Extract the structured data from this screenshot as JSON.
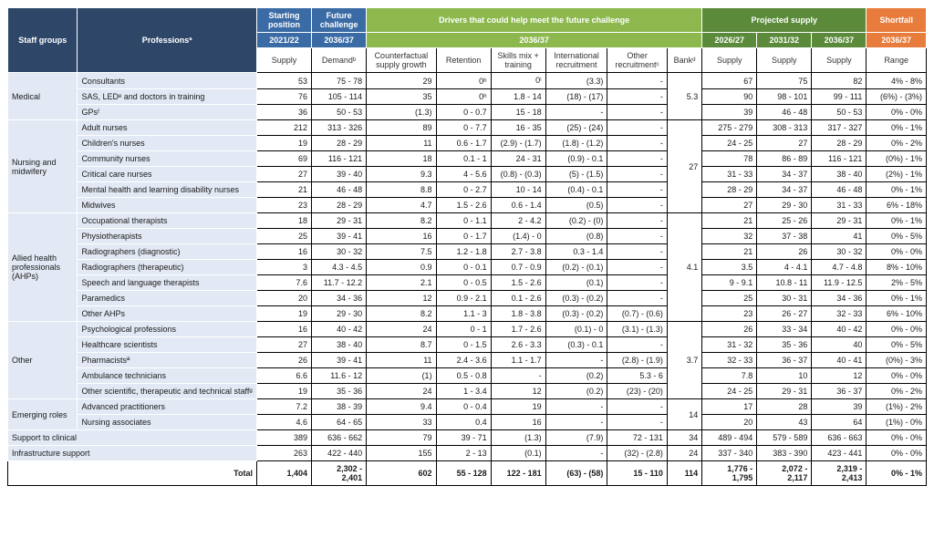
{
  "headers": {
    "staffGroups": "Staff groups",
    "professions": "Professionsª",
    "startingPosition": "Starting position",
    "futureChallenge": "Future challenge",
    "driversTitle": "Drivers that could help meet the future challenge",
    "projectedSupply": "Projected supply",
    "shortfall": "Shortfall",
    "y2021": "2021/22",
    "y2036a": "2036/37",
    "y2026": "2026/27",
    "y2031": "2031/32",
    "y2036b": "2036/37",
    "supply": "Supply",
    "demand": "Demandᵇ",
    "counterfactual": "Counterfactual supply growth",
    "retention": "Retention",
    "skills": "Skills mix + training",
    "international": "International recruitment",
    "other": "Other recruitmentᶜ",
    "bank": "Bankᵈ",
    "range": "Range"
  },
  "colors": {
    "navy": "#2e4769",
    "blue": "#3b6ba5",
    "lgreen": "#8db84e",
    "dgreen": "#5a8a3a",
    "orange": "#e77c3c",
    "groupFill": "#e2e8f4",
    "border": "#000000",
    "white": "#ffffff"
  },
  "fontsize": 9,
  "groups": [
    {
      "name": "Medical",
      "bank": "5.3",
      "rows": [
        {
          "p": "Consultants",
          "v": [
            "53",
            "75 - 78",
            "29",
            "0ʰ",
            "0ⁱ",
            "(3.3)",
            "-",
            "67",
            "75",
            "82",
            "4% - 8%"
          ]
        },
        {
          "p": "SAS, LEDᵉ and doctors in training",
          "v": [
            "76",
            "105 - 114",
            "35",
            "0ʰ",
            "1.8 - 14",
            "(18) - (17)",
            "-",
            "90",
            "98 - 101",
            "99 - 111",
            "(6%) - (3%)"
          ]
        },
        {
          "p": "GPsᶠ",
          "v": [
            "36",
            "50 - 53",
            "(1.3)",
            "0 - 0.7",
            "15 - 18",
            "-",
            "-",
            "39",
            "46 - 48",
            "50 - 53",
            "0% - 0%"
          ]
        }
      ]
    },
    {
      "name": "Nursing and midwifery",
      "bank": "27",
      "rows": [
        {
          "p": "Adult nurses",
          "v": [
            "212",
            "313 - 326",
            "89",
            "0 - 7.7",
            "16 - 35",
            "(25) - (24)",
            "-",
            "275 - 279",
            "308 - 313",
            "317 - 327",
            "0% - 1%"
          ]
        },
        {
          "p": "Children's nurses",
          "v": [
            "19",
            "28 - 29",
            "11",
            "0.6 - 1.7",
            "(2.9) - (1.7)",
            "(1.8) - (1.2)",
            "-",
            "24 - 25",
            "27",
            "28 - 29",
            "0% - 2%"
          ]
        },
        {
          "p": "Community nurses",
          "v": [
            "69",
            "116 - 121",
            "18",
            "0.1 - 1",
            "24 - 31",
            "(0.9) - 0.1",
            "-",
            "78",
            "86 - 89",
            "116 - 121",
            "(0%) - 1%"
          ]
        },
        {
          "p": "Critical care nurses",
          "v": [
            "27",
            "39 - 40",
            "9.3",
            "4 - 5.6",
            "(0.8) - (0.3)",
            "(5) - (1.5)",
            "-",
            "31 - 33",
            "34 - 37",
            "38 - 40",
            "(2%) - 1%"
          ]
        },
        {
          "p": "Mental health and learning disability nurses",
          "v": [
            "21",
            "46 - 48",
            "8.8",
            "0 - 2.7",
            "10 - 14",
            "(0.4) - 0.1",
            "-",
            "28 - 29",
            "34 - 37",
            "46 - 48",
            "0% - 1%"
          ]
        },
        {
          "p": "Midwives",
          "v": [
            "23",
            "28 - 29",
            "4.7",
            "1.5 - 2.6",
            "0.6 - 1.4",
            "(0.5)",
            "-",
            "27",
            "29 - 30",
            "31 - 33",
            "6% - 18%"
          ]
        }
      ]
    },
    {
      "name": "Allied health professionals (AHPs)",
      "bank": "4.1",
      "rows": [
        {
          "p": "Occupational therapists",
          "v": [
            "18",
            "29 - 31",
            "8.2",
            "0 - 1.1",
            "2 - 4.2",
            "(0.2) - (0)",
            "-",
            "21",
            "25 - 26",
            "29 - 31",
            "0% - 1%"
          ]
        },
        {
          "p": "Physiotherapists",
          "v": [
            "25",
            "39 - 41",
            "16",
            "0 - 1.7",
            "(1.4) - 0",
            "(0.8)",
            "-",
            "32",
            "37 - 38",
            "41",
            "0% - 5%"
          ]
        },
        {
          "p": "Radiographers (diagnostic)",
          "v": [
            "16",
            "30 - 32",
            "7.5",
            "1.2 - 1.8",
            "2.7 - 3.8",
            "0.3 - 1.4",
            "-",
            "21",
            "26",
            "30 - 32",
            "0% - 0%"
          ]
        },
        {
          "p": "Radiographers (therapeutic)",
          "v": [
            "3",
            "4.3 - 4.5",
            "0.9",
            "0 - 0.1",
            "0.7 - 0.9",
            "(0.2) - (0.1)",
            "-",
            "3.5",
            "4 - 4.1",
            "4.7 - 4.8",
            "8% - 10%"
          ]
        },
        {
          "p": "Speech and language therapists",
          "v": [
            "7.6",
            "11.7 - 12.2",
            "2.1",
            "0 - 0.5",
            "1.5 - 2.6",
            "(0.1)",
            "-",
            "9 - 9.1",
            "10.8 - 11",
            "11.9 - 12.5",
            "2% - 5%"
          ]
        },
        {
          "p": "Paramedics",
          "v": [
            "20",
            "34 - 36",
            "12",
            "0.9 - 2.1",
            "0.1 - 2.6",
            "(0.3) - (0.2)",
            "-",
            "25",
            "30 - 31",
            "34 - 36",
            "0% - 1%"
          ]
        },
        {
          "p": "Other AHPs",
          "v": [
            "19",
            "29 - 30",
            "8.2",
            "1.1 - 3",
            "1.8 - 3.8",
            "(0.3) - (0.2)",
            "(0.7) - (0.6)",
            "23",
            "26 - 27",
            "32 - 33",
            "6% - 10%"
          ]
        }
      ]
    },
    {
      "name": "Other",
      "bank": "3.7",
      "rows": [
        {
          "p": "Psychological professions",
          "v": [
            "16",
            "40 - 42",
            "24",
            "0 - 1",
            "1.7 - 2.6",
            "(0.1) - 0",
            "(3.1) - (1.3)",
            "26",
            "33 - 34",
            "40 - 42",
            "0% - 0%"
          ]
        },
        {
          "p": "Healthcare scientists",
          "v": [
            "27",
            "38 - 40",
            "8.7",
            "0 - 1.5",
            "2.6 - 3.3",
            "(0.3) - 0.1",
            "-",
            "31 - 32",
            "35 - 36",
            "40",
            "0% - 5%"
          ]
        },
        {
          "p": "Pharmacistsª",
          "v": [
            "26",
            "39 - 41",
            "11",
            "2.4 - 3.6",
            "1.1 - 1.7",
            "-",
            "(2.8) - (1.9)",
            "32 - 33",
            "36 - 37",
            "40 - 41",
            "(0%) - 3%"
          ]
        },
        {
          "p": "Ambulance technicians",
          "v": [
            "6.6",
            "11.6 - 12",
            "(1)",
            "0.5 - 0.8",
            "-",
            "(0.2)",
            "5.3 - 6",
            "7.8",
            "10",
            "12",
            "0% - 0%"
          ]
        },
        {
          "p": "Other scientific, therapeutic and technical staffᵍ",
          "v": [
            "19",
            "35 - 36",
            "24",
            "1 - 3.4",
            "12",
            "(0.2)",
            "(23) - (20)",
            "24 - 25",
            "29 - 31",
            "36 - 37",
            "0% - 2%"
          ]
        }
      ]
    },
    {
      "name": "Emerging roles",
      "bank": "14",
      "rows": [
        {
          "p": "Advanced practitioners",
          "v": [
            "7.2",
            "38 - 39",
            "9.4",
            "0 - 0.4",
            "19",
            "-",
            "-",
            "17",
            "28",
            "39",
            "(1%) - 2%"
          ]
        },
        {
          "p": "Nursing associates",
          "v": [
            "4.6",
            "64 - 65",
            "33",
            "0.4",
            "16",
            "-",
            "-",
            "20",
            "43",
            "64",
            "(1%) - 0%"
          ]
        }
      ]
    }
  ],
  "flatRows": [
    {
      "p": "Support to clinical",
      "v": [
        "389",
        "636 - 662",
        "79",
        "39 - 71",
        "(1.3)",
        "(7.9)",
        "72 - 131",
        "34",
        "489 - 494",
        "579 - 589",
        "636 - 663",
        "0% - 0%"
      ]
    },
    {
      "p": "Infrastructure support",
      "v": [
        "263",
        "422 - 440",
        "155",
        "2 - 13",
        "(0.1)",
        "-",
        "(32) - (2.8)",
        "24",
        "337 - 340",
        "383 - 390",
        "423 - 441",
        "0% - 0%"
      ]
    }
  ],
  "total": {
    "p": "Total",
    "v": [
      "1,404",
      "2,302 - 2,401",
      "602",
      "55 - 128",
      "122 - 181",
      "(63) - (58)",
      "15 - 110",
      "114",
      "1,776 - 1,795",
      "2,072 - 2,117",
      "2,319 - 2,413",
      "0% - 1%"
    ]
  }
}
